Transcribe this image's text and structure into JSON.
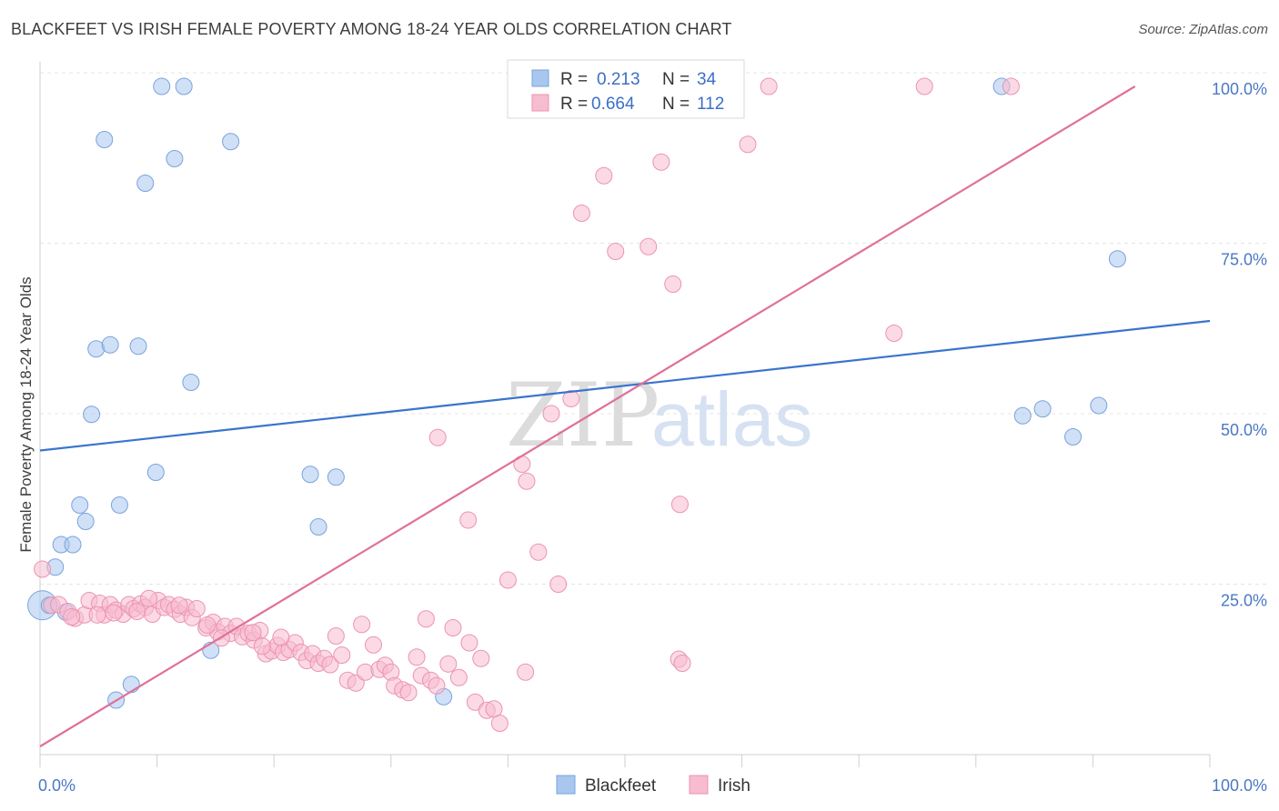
{
  "title": "BLACKFEET VS IRISH FEMALE POVERTY AMONG 18-24 YEAR OLDS CORRELATION CHART",
  "source": "Source: ZipAtlas.com",
  "watermark": {
    "zip": "ZIP",
    "atlas": "atlas"
  },
  "legend_box": [
    {
      "r_label": "R =",
      "r_value": "0.213",
      "n_label": "N =",
      "n_value": "34"
    },
    {
      "r_label": "R =",
      "r_value": "0.664",
      "n_label": "N =",
      "n_value": "112"
    }
  ],
  "chart_data": {
    "type": "scatter",
    "title": "BLACKFEET VS IRISH FEMALE POVERTY AMONG 18-24 YEAR OLDS CORRELATION CHART",
    "xlabel": "",
    "ylabel": "Female Poverty Among 18-24 Year Olds",
    "xlim": [
      0,
      100
    ],
    "ylim": [
      0,
      100
    ],
    "x_tick_labels": [
      "0.0%",
      "100.0%"
    ],
    "y_tick_labels": [
      {
        "value": 25,
        "label": "25.0%"
      },
      {
        "value": 50,
        "label": "50.0%"
      },
      {
        "value": 75,
        "label": "75.0%"
      },
      {
        "value": 100,
        "label": "100.0%"
      }
    ],
    "grid": true,
    "legend_position": "bottom-center",
    "series": [
      {
        "name": "Blackfeet",
        "color": "#a9c7ee",
        "stroke": "#7aa3dc",
        "line_color": "#3b74cc",
        "r": 0.213,
        "n": 34,
        "trend": {
          "x": [
            0,
            100
          ],
          "y": [
            44.6,
            63.6
          ]
        },
        "points": [
          [
            10.4,
            98.0
          ],
          [
            12.3,
            98.0
          ],
          [
            82.2,
            98.0
          ],
          [
            5.5,
            90.2
          ],
          [
            16.3,
            89.9
          ],
          [
            11.5,
            87.4
          ],
          [
            9.0,
            83.8
          ],
          [
            92.1,
            72.7
          ],
          [
            4.8,
            59.5
          ],
          [
            6.0,
            60.1
          ],
          [
            8.4,
            59.9
          ],
          [
            12.9,
            54.6
          ],
          [
            4.4,
            49.9
          ],
          [
            84.0,
            49.7
          ],
          [
            85.7,
            50.7
          ],
          [
            90.5,
            51.2
          ],
          [
            88.3,
            46.6
          ],
          [
            9.9,
            41.4
          ],
          [
            23.1,
            41.1
          ],
          [
            25.3,
            40.7
          ],
          [
            3.4,
            36.6
          ],
          [
            6.8,
            36.6
          ],
          [
            3.9,
            34.2
          ],
          [
            23.8,
            33.4
          ],
          [
            1.8,
            30.8
          ],
          [
            2.8,
            30.8
          ],
          [
            1.3,
            27.5
          ],
          [
            0.2,
            21.9
          ],
          [
            0.8,
            21.9
          ],
          [
            2.2,
            20.9
          ],
          [
            14.6,
            15.3
          ],
          [
            7.8,
            10.3
          ],
          [
            6.5,
            8.0
          ],
          [
            34.5,
            8.5
          ]
        ]
      },
      {
        "name": "Irish",
        "color": "#f7bcd0",
        "stroke": "#ec93b1",
        "line_color": "#e0709a",
        "r": 0.664,
        "n": 112,
        "trend": {
          "x": [
            0,
            93.6
          ],
          "y": [
            1.2,
            98.0
          ]
        },
        "points": [
          [
            44.3,
            98.0
          ],
          [
            45.9,
            98.0
          ],
          [
            57.1,
            98.0
          ],
          [
            62.3,
            98.0
          ],
          [
            75.6,
            98.0
          ],
          [
            83.0,
            98.0
          ],
          [
            60.5,
            89.5
          ],
          [
            53.1,
            86.9
          ],
          [
            48.2,
            84.9
          ],
          [
            46.3,
            79.4
          ],
          [
            49.2,
            73.8
          ],
          [
            52.0,
            74.5
          ],
          [
            54.1,
            69.0
          ],
          [
            73.0,
            61.8
          ],
          [
            45.4,
            52.2
          ],
          [
            43.7,
            50.0
          ],
          [
            34.0,
            46.5
          ],
          [
            41.2,
            42.6
          ],
          [
            41.6,
            40.1
          ],
          [
            54.7,
            36.7
          ],
          [
            36.6,
            34.4
          ],
          [
            42.6,
            29.7
          ],
          [
            40.0,
            25.6
          ],
          [
            44.3,
            25.0
          ],
          [
            0.2,
            27.2
          ],
          [
            1.0,
            21.9
          ],
          [
            1.6,
            22.0
          ],
          [
            2.4,
            21.0
          ],
          [
            3.0,
            20.0
          ],
          [
            3.8,
            20.5
          ],
          [
            4.2,
            22.6
          ],
          [
            5.1,
            22.2
          ],
          [
            5.5,
            20.5
          ],
          [
            6.0,
            22.0
          ],
          [
            6.5,
            21.2
          ],
          [
            7.1,
            20.6
          ],
          [
            7.6,
            22.0
          ],
          [
            8.0,
            21.4
          ],
          [
            8.6,
            22.1
          ],
          [
            9.0,
            21.6
          ],
          [
            9.6,
            20.6
          ],
          [
            10.1,
            22.6
          ],
          [
            10.6,
            21.6
          ],
          [
            11.0,
            22.0
          ],
          [
            11.5,
            21.3
          ],
          [
            12.0,
            20.6
          ],
          [
            12.5,
            21.6
          ],
          [
            13.0,
            20.1
          ],
          [
            13.4,
            21.4
          ],
          [
            14.2,
            18.6
          ],
          [
            14.8,
            19.4
          ],
          [
            15.2,
            18.0
          ],
          [
            15.8,
            18.8
          ],
          [
            16.3,
            17.8
          ],
          [
            16.8,
            18.8
          ],
          [
            17.3,
            17.3
          ],
          [
            17.8,
            17.8
          ],
          [
            18.3,
            16.8
          ],
          [
            18.8,
            18.2
          ],
          [
            19.3,
            14.8
          ],
          [
            19.8,
            15.2
          ],
          [
            20.3,
            16.0
          ],
          [
            20.8,
            15.0
          ],
          [
            21.3,
            15.4
          ],
          [
            21.8,
            16.4
          ],
          [
            22.3,
            15.0
          ],
          [
            22.8,
            13.8
          ],
          [
            23.3,
            14.8
          ],
          [
            23.8,
            13.4
          ],
          [
            24.3,
            14.1
          ],
          [
            24.8,
            13.2
          ],
          [
            25.3,
            17.4
          ],
          [
            25.8,
            14.6
          ],
          [
            26.3,
            10.9
          ],
          [
            27.0,
            10.5
          ],
          [
            27.5,
            19.1
          ],
          [
            27.8,
            12.1
          ],
          [
            28.5,
            16.1
          ],
          [
            29.0,
            12.5
          ],
          [
            29.5,
            13.1
          ],
          [
            30.0,
            12.1
          ],
          [
            30.3,
            10.1
          ],
          [
            31.0,
            9.5
          ],
          [
            31.5,
            9.1
          ],
          [
            32.2,
            14.3
          ],
          [
            32.6,
            11.6
          ],
          [
            33.0,
            19.9
          ],
          [
            33.4,
            10.9
          ],
          [
            33.9,
            10.1
          ],
          [
            34.9,
            13.3
          ],
          [
            35.3,
            18.6
          ],
          [
            35.8,
            11.3
          ],
          [
            36.7,
            16.4
          ],
          [
            37.2,
            7.7
          ],
          [
            37.7,
            14.1
          ],
          [
            38.2,
            6.5
          ],
          [
            38.8,
            6.7
          ],
          [
            39.3,
            4.6
          ],
          [
            41.5,
            12.1
          ],
          [
            54.6,
            14.0
          ],
          [
            54.9,
            13.4
          ],
          [
            4.9,
            20.5
          ],
          [
            2.7,
            20.2
          ],
          [
            6.3,
            20.8
          ],
          [
            8.3,
            21.0
          ],
          [
            9.3,
            22.9
          ],
          [
            11.9,
            21.9
          ],
          [
            14.3,
            19.0
          ],
          [
            15.5,
            17.1
          ],
          [
            18.2,
            17.9
          ],
          [
            19.0,
            15.9
          ],
          [
            20.6,
            17.2
          ]
        ]
      }
    ]
  }
}
